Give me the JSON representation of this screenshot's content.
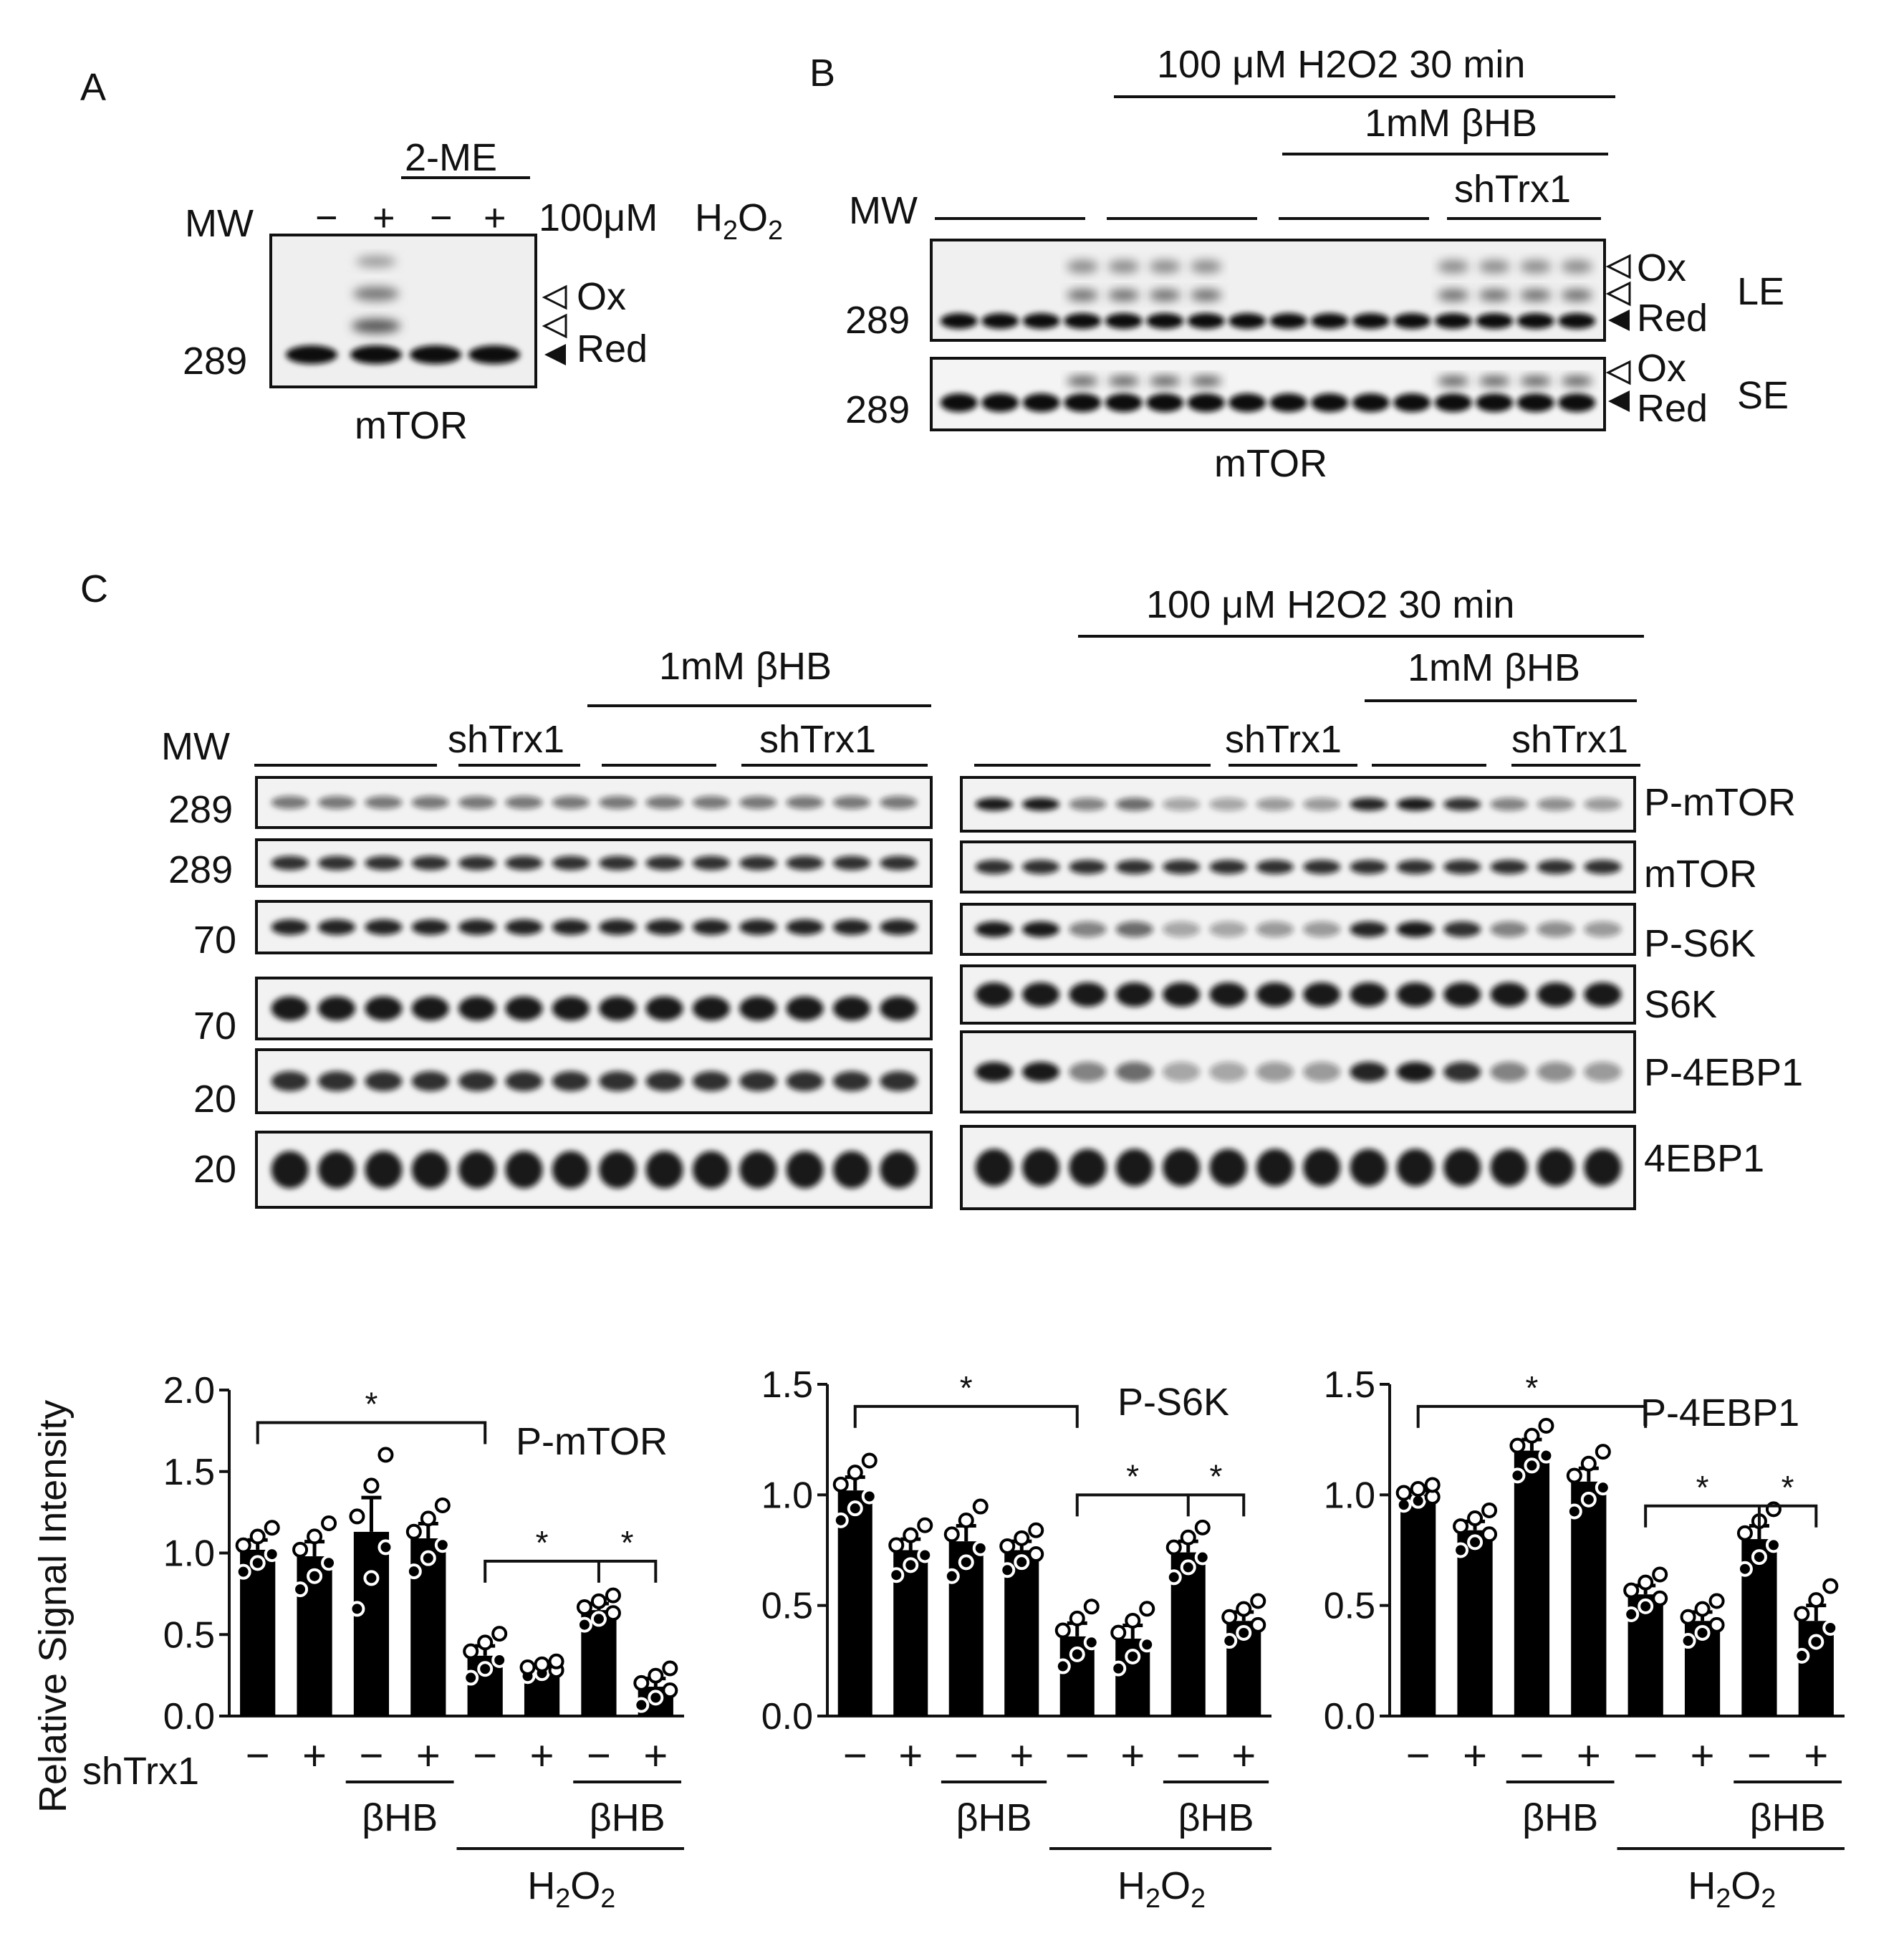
{
  "panelA": {
    "letter": "A",
    "bracket_label": "2-ME",
    "mw_label": "MW",
    "lane_signs": [
      "−",
      "+",
      "−",
      "+"
    ],
    "treatment": "100μM",
    "h2o2": "H2O2",
    "mw_value": "289",
    "ox_label": "Ox",
    "red_label": "Red",
    "blot_label": "mTOR"
  },
  "panelB": {
    "letter": "B",
    "header1": "100 μM H2O2 30 min",
    "header2": "1mM βHB",
    "header3": "shTrx1",
    "mw_label": "MW",
    "mw_le": "289",
    "mw_se": "289",
    "ox_label": "Ox",
    "red_label": "Red",
    "le_label": "LE",
    "se_label": "SE",
    "blot_label": "mTOR"
  },
  "panelC": {
    "letter": "C",
    "mw_label": "MW",
    "left_header_bhb": "1mM βHB",
    "left_shtrx1_a": "shTrx1",
    "left_shtrx1_b": "shTrx1",
    "right_header_h2o2": "100 μM H2O2 30 min",
    "right_header_bhb": "1mM βHB",
    "right_shtrx1_a": "shTrx1",
    "right_shtrx1_b": "shTrx1",
    "mw_values": [
      "289",
      "289",
      "70",
      "70",
      "20",
      "20"
    ],
    "blot_labels": [
      "P-mTOR",
      "mTOR",
      "P-S6K",
      "S6K",
      "P-4EBP1",
      "4EBP1"
    ]
  },
  "bar_labels": {
    "shtrx1_label": "shTrx1",
    "signs": [
      "−",
      "+",
      "−",
      "+",
      "−",
      "+",
      "−",
      "+"
    ],
    "bhb": "βHB",
    "h2o2": "H2O2",
    "star": "*"
  },
  "chart_data": [
    {
      "type": "bar",
      "title": "P-mTOR",
      "ylabel": "Relative  Signal Intensity",
      "ylim": [
        0,
        2.0
      ],
      "yticks": [
        "0.0",
        "0.5",
        "1.0",
        "1.5",
        "2.0"
      ],
      "categories": [
        "− ",
        "+ ",
        "− βHB",
        "+ βHB",
        "− H2O2",
        "+ H2O2",
        "− βHB H2O2",
        "+ βHB H2O2"
      ],
      "values": [
        1.02,
        0.98,
        1.13,
        1.09,
        0.37,
        0.29,
        0.65,
        0.18
      ],
      "errors": [
        0.06,
        0.09,
        0.21,
        0.09,
        0.06,
        0.02,
        0.04,
        0.05
      ]
    },
    {
      "type": "bar",
      "title": "P-S6K",
      "ylim": [
        0,
        1.5
      ],
      "yticks": [
        "0.0",
        "0.5",
        "1.0",
        "1.5"
      ],
      "categories": [
        "− ",
        "+ ",
        "− βHB",
        "+ βHB",
        "− H2O2",
        "+ H2O2",
        "− βHB H2O2",
        "+ βHB H2O2"
      ],
      "values": [
        1.02,
        0.75,
        0.79,
        0.75,
        0.36,
        0.35,
        0.74,
        0.43
      ],
      "errors": [
        0.06,
        0.05,
        0.07,
        0.04,
        0.06,
        0.06,
        0.05,
        0.04
      ]
    },
    {
      "type": "bar",
      "title": "P-4EBP1",
      "ylim": [
        0,
        1.5
      ],
      "yticks": [
        "0.0",
        "0.5",
        "1.0",
        "1.5"
      ],
      "categories": [
        "− ",
        "+ ",
        "− βHB",
        "+ βHB",
        "− H2O2",
        "+ H2O2",
        "− βHB H2O2",
        "+ βHB H2O2"
      ],
      "values": [
        1.0,
        0.84,
        1.2,
        1.06,
        0.55,
        0.43,
        0.8,
        0.43
      ],
      "errors": [
        0.02,
        0.04,
        0.05,
        0.06,
        0.04,
        0.04,
        0.06,
        0.07
      ]
    }
  ]
}
